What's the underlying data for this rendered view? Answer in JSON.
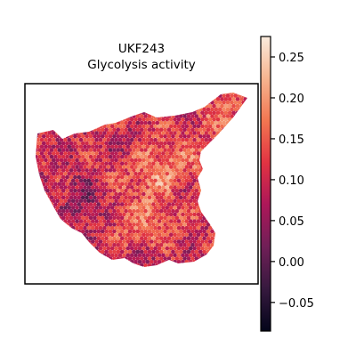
{
  "chart_data": {
    "type": "heatmap",
    "subtype": "spatial-hexbin",
    "title": "UKF243",
    "subtitle": "Glycolysis activity",
    "xlabel": "",
    "ylabel": "",
    "axis_ticks": false,
    "grid": false,
    "legend": "none",
    "colorbar": {
      "placement": "right",
      "colormap": "rocket",
      "colormap_stops": [
        "#03051a",
        "#36193e",
        "#701f57",
        "#ad1759",
        "#e13342",
        "#f37651",
        "#f6b48f",
        "#faebdd"
      ],
      "vmin": -0.085,
      "vmax": 0.275,
      "tick_values": [
        -0.05,
        0.0,
        0.05,
        0.1,
        0.15,
        0.2,
        0.25
      ],
      "tick_labels": [
        "−0.05",
        "0.00",
        "0.05",
        "0.10",
        "0.15",
        "0.20",
        "0.25"
      ]
    },
    "value_summary": {
      "typical_range": [
        0.0,
        0.22
      ],
      "high_region": "center of tissue",
      "low_region": "left and lower edges"
    }
  }
}
